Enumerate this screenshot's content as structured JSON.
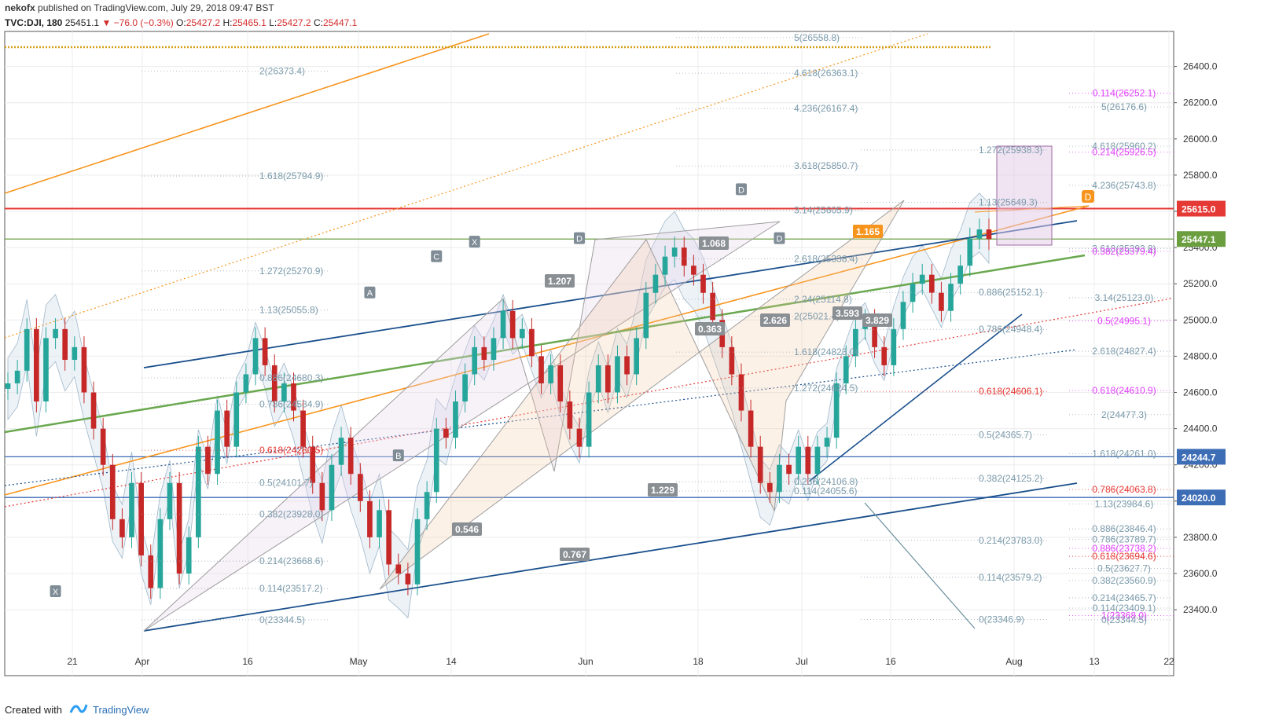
{
  "header": {
    "user": "nekofx",
    "published": "published on TradingView.com, July 29, 2018 09:47 BST",
    "symbol": "TVC:DJI, 180",
    "last": "25451.1",
    "change": "▼ −76.0 (−0.3%)",
    "o_label": "O:",
    "o": "25427.2",
    "h_label": "H:",
    "h": "25465.1",
    "l_label": "L:",
    "l": "25427.2",
    "c_label": "C:",
    "c": "25447.1"
  },
  "footer": {
    "created_with": "Created with",
    "brand": "TradingView"
  },
  "colors": {
    "up": "#26a69a",
    "down": "#c62828",
    "navy": "#1a4f8c",
    "orange": "#f7941d",
    "green": "#6aa84f",
    "magenta": "#e040fb",
    "red": "#e53935",
    "price_red": "#e53935",
    "price_green": "#6a9e3f",
    "price_blue": "#3d6db5"
  },
  "chart_data": {
    "type": "candlestick",
    "symbol": "DJI",
    "timeframe": "180",
    "y_axis": {
      "range": [
        23250,
        26750
      ],
      "ticks": [
        23400,
        23600,
        23800,
        24000,
        24200,
        24400,
        24600,
        24800,
        25000,
        25200,
        25400,
        25600,
        25800,
        26000,
        26200,
        26400
      ]
    },
    "x_axis": {
      "ticks": [
        "21",
        "Apr",
        "16",
        "May",
        "14",
        "Jun",
        "18",
        "Jul",
        "16",
        "Aug",
        "13",
        "22"
      ]
    },
    "close_path": [
      24650,
      24720,
      24950,
      24550,
      24900,
      24950,
      24780,
      24850,
      24600,
      24400,
      24200,
      23900,
      23800,
      24100,
      23700,
      23520,
      23900,
      24100,
      23600,
      23800,
      24300,
      24150,
      24500,
      24300,
      24600,
      24700,
      24900,
      24750,
      24550,
      24650,
      24500,
      24300,
      24100,
      23950,
      24200,
      24350,
      24150,
      24000,
      23800,
      23950,
      23650,
      23600,
      23540,
      23900,
      24050,
      24400,
      24350,
      24550,
      24700,
      24850,
      24780,
      24900,
      25050,
      24900,
      24950,
      24800,
      24650,
      24750,
      24550,
      24400,
      24300,
      24600,
      24750,
      24600,
      24800,
      24700,
      24900,
      25150,
      25250,
      25350,
      25400,
      25300,
      25250,
      25150,
      25000,
      24850,
      24700,
      24500,
      24300,
      24100,
      24050,
      24200,
      24150,
      24300,
      24150,
      24300,
      24350,
      24650,
      24800,
      24950,
      25000,
      24850,
      24750,
      24950,
      25100,
      25200,
      25250,
      25150,
      25050,
      25200,
      25300,
      25450,
      25500,
      25447
    ],
    "price_tags": [
      {
        "value": 25615.0,
        "label": "25615.0",
        "color": "#e53935"
      },
      {
        "value": 25447.1,
        "label": "25447.1",
        "color": "#6a9e3f"
      },
      {
        "value": 24244.7,
        "label": "24244.7",
        "color": "#3d6db5"
      },
      {
        "value": 24020.0,
        "label": "24020.0",
        "color": "#3d6db5"
      }
    ],
    "fib_labels": [
      {
        "text": "5(26558.8)",
        "value": 26558.8,
        "col": "c1"
      },
      {
        "text": "2(26373.4)",
        "value": 26373.4,
        "col": "a"
      },
      {
        "text": "4.618(26363.1)",
        "value": 26363.1,
        "col": "c2"
      },
      {
        "text": "0.114(26252.1)",
        "value": 26252.1,
        "col": "r",
        "color": "#e040fb"
      },
      {
        "text": "4.236(26167.4)",
        "value": 26167.4,
        "col": "c2"
      },
      {
        "text": "5(26176.6)",
        "value": 26176.6,
        "col": "r"
      },
      {
        "text": "4.618(25960.2)",
        "value": 25960.2,
        "col": "r"
      },
      {
        "text": "1.272(25938.3)",
        "value": 25938.3,
        "col": "c3"
      },
      {
        "text": "0.214(25926.5)",
        "value": 25926.5,
        "col": "r",
        "color": "#e040fb"
      },
      {
        "text": "3.618(25850.7)",
        "value": 25850.7,
        "col": "c2"
      },
      {
        "text": "1.618(25794.9)",
        "value": 25794.9,
        "col": "a"
      },
      {
        "text": "4.236(25743.8)",
        "value": 25743.8,
        "col": "r"
      },
      {
        "text": "1.13(25649.3)",
        "value": 25649.3,
        "col": "c3"
      },
      {
        "text": "3.14(25605.9)",
        "value": 25605.9,
        "col": "c2"
      },
      {
        "text": "3.618(25393.8)",
        "value": 25393.8,
        "col": "r"
      },
      {
        "text": "0.382(25379.4)",
        "value": 25379.4,
        "col": "r",
        "color": "#e040fb"
      },
      {
        "text": "2.618(25338.4)",
        "value": 25338.4,
        "col": "c2"
      },
      {
        "text": "1.272(25270.9)",
        "value": 25270.9,
        "col": "a"
      },
      {
        "text": "0.886(25152.1)",
        "value": 25152.1,
        "col": "c3"
      },
      {
        "text": "2.24(25114.8)",
        "value": 25114.8,
        "col": "c2"
      },
      {
        "text": "3.14(25123.0)",
        "value": 25123.0,
        "col": "r"
      },
      {
        "text": "1.13(25055.8)",
        "value": 25055.8,
        "col": "a"
      },
      {
        "text": "2(25021.4)",
        "value": 25021.4,
        "col": "c2"
      },
      {
        "text": "0.5(24995.1)",
        "value": 24995.1,
        "col": "r",
        "color": "#e040fb"
      },
      {
        "text": "0.786(24948.4)",
        "value": 24948.4,
        "col": "c3"
      },
      {
        "text": "2.618(24827.4)",
        "value": 24827.4,
        "col": "r"
      },
      {
        "text": "1.618(24823.0)",
        "value": 24823.0,
        "col": "c2"
      },
      {
        "text": "0.886(24680.3)",
        "value": 24680.3,
        "col": "a"
      },
      {
        "text": "1.272(24624.5)",
        "value": 24624.5,
        "col": "c2"
      },
      {
        "text": "0.618(24610.9)",
        "value": 24610.9,
        "col": "r",
        "color": "#e040fb"
      },
      {
        "text": "0.618(24606.1)",
        "value": 24606.1,
        "col": "c3",
        "color": "#e53935"
      },
      {
        "text": "0.786(24534.9)",
        "value": 24534.9,
        "col": "a"
      },
      {
        "text": "2(24477.3)",
        "value": 24477.3,
        "col": "r"
      },
      {
        "text": "0.5(24365.7)",
        "value": 24365.7,
        "col": "c3"
      },
      {
        "text": "0.618(24280.5)",
        "value": 24280.5,
        "col": "a",
        "color": "#e53935"
      },
      {
        "text": "1.618(24261.0)",
        "value": 24261.0,
        "col": "r"
      },
      {
        "text": "0.382(24125.2)",
        "value": 24125.2,
        "col": "c3"
      },
      {
        "text": "0.5(24101.7)",
        "value": 24101.7,
        "col": "a"
      },
      {
        "text": "0.236(24106.8)",
        "value": 24106.8,
        "col": "c2"
      },
      {
        "text": "0.786(24063.8)",
        "value": 24063.8,
        "col": "r",
        "color": "#e53935"
      },
      {
        "text": "0.114(24055.6)",
        "value": 24055.6,
        "col": "c2"
      },
      {
        "text": "0.382(23928.0)",
        "value": 23928.0,
        "col": "a"
      },
      {
        "text": "1.13(23984.6)",
        "value": 23984.6,
        "col": "r"
      },
      {
        "text": "0.886(23846.4)",
        "value": 23846.4,
        "col": "r"
      },
      {
        "text": "0.786(23789.7)",
        "value": 23789.7,
        "col": "r"
      },
      {
        "text": "0.214(23783.0)",
        "value": 23783.0,
        "col": "c3"
      },
      {
        "text": "0.886(23738.2)",
        "value": 23738.2,
        "col": "r",
        "color": "#e040fb"
      },
      {
        "text": "0.618(23694.6)",
        "value": 23694.6,
        "col": "r",
        "color": "#e53935"
      },
      {
        "text": "0.214(23668.6)",
        "value": 23668.6,
        "col": "a"
      },
      {
        "text": "0.5(23627.7)",
        "value": 23627.7,
        "col": "r"
      },
      {
        "text": "0.114(23579.2)",
        "value": 23579.2,
        "col": "c3"
      },
      {
        "text": "0.382(23560.9)",
        "value": 23560.9,
        "col": "r"
      },
      {
        "text": "0.114(23517.2)",
        "value": 23517.2,
        "col": "a"
      },
      {
        "text": "0.214(23465.7)",
        "value": 23465.7,
        "col": "r"
      },
      {
        "text": "0.114(23409.1)",
        "value": 23409.1,
        "col": "r"
      },
      {
        "text": "1(23368.0)",
        "value": 23368.0,
        "col": "r",
        "color": "#e040fb"
      },
      {
        "text": "0(23344.5)",
        "value": 23344.5,
        "col": "a"
      },
      {
        "text": "0(23346.9)",
        "value": 23346.9,
        "col": "c3"
      },
      {
        "text": "0(23344.5)",
        "value": 23344.5,
        "col": "r"
      }
    ],
    "pattern_labels": [
      {
        "text": "X",
        "date_idx": 5,
        "value": 23500
      },
      {
        "text": "A",
        "date_idx": 38,
        "value": 25150
      },
      {
        "text": "B",
        "date_idx": 41,
        "value": 24250
      },
      {
        "text": "C",
        "date_idx": 45,
        "value": 25350
      },
      {
        "text": "D",
        "date_idx": 60,
        "value": 25450
      },
      {
        "text": "X",
        "date_idx": 49,
        "value": 25430
      },
      {
        "text": "D",
        "date_idx": 77,
        "value": 25720
      },
      {
        "text": "D",
        "date_idx": 81,
        "value": 25450
      }
    ],
    "ratio_labels": [
      "1.207",
      "1.068",
      "0.546",
      "0.767",
      "1.229",
      "2.626",
      "3.593",
      "3.829",
      "1.165",
      "0.363"
    ],
    "corner_label": "D"
  }
}
